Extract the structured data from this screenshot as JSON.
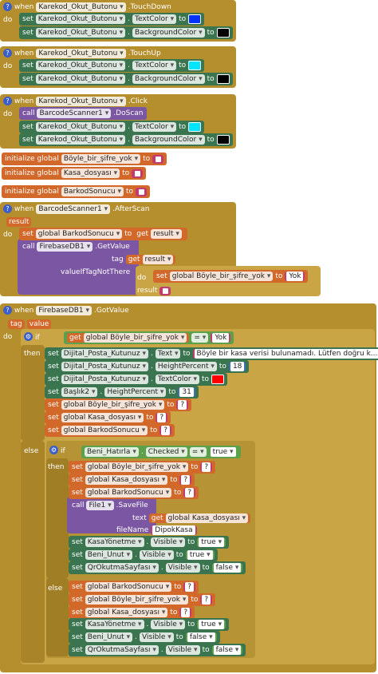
{
  "blocks": [
    {
      "rows": [
        [
          "when",
          "Karekod_Okut_Butonu",
          ".TouchDown"
        ],
        [
          "do"
        ],
        [
          "set",
          "Karekod_Okut_Butonu",
          ".",
          "TextColor",
          "to"
        ],
        [
          "set",
          "Karekod_Okut_Butonu",
          ".",
          "BackgroundColor",
          "to"
        ]
      ]
    },
    {
      "rows": [
        [
          "when",
          "Karekod_Okut_Butonu",
          ".TouchUp"
        ],
        [
          "do"
        ],
        [
          "set",
          "Karekod_Okut_Butonu",
          ".",
          "TextColor",
          "to"
        ],
        [
          "set",
          "Karekod_Okut_Butonu",
          ".",
          "BackgroundColor",
          "to"
        ]
      ]
    },
    {
      "rows": [
        [
          "when",
          "Karekod_Okut_Butonu",
          ".Click"
        ],
        [
          "do"
        ],
        [
          "call",
          "BarcodeScanner1",
          ".DoScan"
        ],
        [
          "set",
          "Karekod_Okut_Butonu",
          ".",
          "TextColor",
          "to"
        ],
        [
          "set",
          "Karekod_Okut_Butonu",
          ".",
          "BackgroundColor",
          "to"
        ]
      ]
    },
    {
      "rows": [
        [
          "initialize global",
          "Böyle_bir_şifre_yok",
          "to"
        ]
      ]
    },
    {
      "rows": [
        [
          "initialize global",
          "Kasa_dosyası",
          "to"
        ]
      ]
    },
    {
      "rows": [
        [
          "initialize global",
          "BarkodSonucu",
          "to"
        ]
      ]
    },
    {
      "rows": [
        [
          "when",
          "BarcodeScanner1",
          ".AfterScan"
        ],
        [
          "result"
        ],
        [
          "do"
        ],
        [
          "set",
          "global BarkodSonucu",
          "to",
          "get",
          "result"
        ],
        [
          "call",
          "FirebaseDB1",
          ".GetValue"
        ],
        [
          "tag",
          "get",
          "result"
        ],
        [
          "valueIfTagNotThere"
        ],
        [
          "do"
        ],
        [
          "set",
          "global Böyle_bir_şifre_yok",
          "to",
          "Yok"
        ],
        [
          "result"
        ]
      ]
    },
    {
      "rows": [
        [
          "when",
          "FirebaseDB1",
          ".GotValue"
        ],
        [
          "tag",
          "value"
        ],
        [
          "do"
        ],
        [
          "if"
        ],
        [
          "get",
          "global Böyle_bir_şifre_yok",
          "=",
          "Yok"
        ],
        [
          "then"
        ],
        [
          "set",
          "Dijital_Posta_Kutunuz",
          ".",
          "Text",
          "to",
          "Böyle bir kasa verisi bulunamadı. Lütfen doğru k..."
        ],
        [
          "set",
          "Dijital_Posta_Kutunuz",
          ".",
          "HeightPercent",
          "to",
          "18"
        ],
        [
          "set",
          "Dijital_Posta_Kutunuz",
          ".",
          "TextColor",
          "to"
        ],
        [
          "set",
          "Başlık2",
          ".",
          "HeightPercent",
          "to",
          "31"
        ],
        [
          "set",
          "global Böyle_bir_şifre_yok",
          "to",
          "?"
        ],
        [
          "set",
          "global Kasa_dosyası",
          "to",
          "?"
        ],
        [
          "set",
          "global BarkodSonucu",
          "to",
          "?"
        ],
        [
          "else"
        ],
        [
          "if"
        ],
        [
          "Beni_Hatırla",
          ".",
          "Checked",
          "=",
          "true"
        ],
        [
          "then"
        ],
        [
          "set",
          "global Böyle_bir_şifre_yok",
          "to",
          "?"
        ],
        [
          "set",
          "global Kasa_dosyası",
          "to",
          "?"
        ],
        [
          "set",
          "global BarkodSonucu",
          "to",
          "?"
        ],
        [
          "call",
          "File1",
          ".SaveFile"
        ],
        [
          "text",
          "get",
          "global Kasa_dosyası"
        ],
        [
          "fileName",
          "DipokKasa"
        ],
        [
          "set",
          "KasaYönetme",
          ".",
          "Visible",
          "to",
          "true"
        ],
        [
          "set",
          "Beni_Unut",
          ".",
          "Visible",
          "to",
          "true"
        ],
        [
          "set",
          "QrOkutmaSayfası",
          ".",
          "Visible",
          "to",
          "false"
        ],
        [
          "else"
        ],
        [
          "set",
          "global BarkodSonucu",
          "to",
          "?"
        ],
        [
          "set",
          "global Böyle_bir_şifre_yok",
          "to",
          "?"
        ],
        [
          "set",
          "global Kasa_dosyası",
          "to",
          "?"
        ],
        [
          "set",
          "KasaYönetme",
          ".",
          "Visible",
          "to",
          "true"
        ],
        [
          "set",
          "Beni_Unut",
          ".",
          "Visible",
          "to",
          "false"
        ],
        [
          "set",
          "QrOkutmaSayfası",
          ".",
          "Visible",
          "to",
          "false"
        ]
      ]
    }
  ]
}
